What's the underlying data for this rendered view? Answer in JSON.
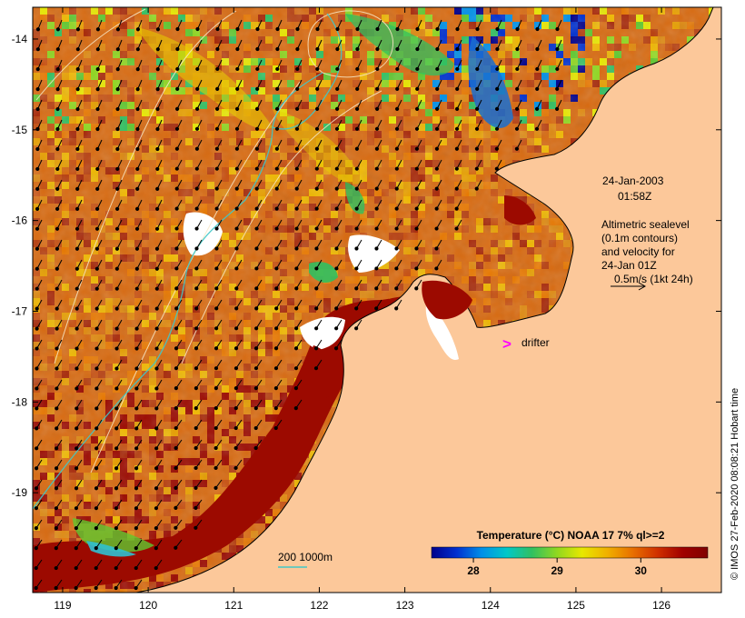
{
  "map": {
    "lon_ticks": [
      "119",
      "120",
      "121",
      "122",
      "123",
      "124",
      "125",
      "126"
    ],
    "lat_ticks": [
      "-14",
      "-15",
      "-16",
      "-17",
      "-18",
      "-19"
    ],
    "lon_range": [
      118.65,
      126.7
    ],
    "lat_range": [
      -20.1,
      -13.65
    ]
  },
  "annotations": {
    "date": "24-Jan-2003",
    "time": "01:58Z",
    "altimetry_lines": [
      "Altimetric sealevel",
      "(0.1m contours)",
      "and velocity for",
      "24-Jan 01Z",
      "0.5m/s (1kt 24h)"
    ],
    "drifter_marker": ">",
    "drifter_label": "drifter",
    "bathymetry_legend": "200  1000m"
  },
  "colorbar": {
    "title": "Temperature (°C) NOAA 17 7% ql>=2",
    "ticks": [
      "28",
      "29",
      "30"
    ],
    "range": [
      27.5,
      30.8
    ],
    "colors": [
      "#00008b",
      "#0030d0",
      "#0090e8",
      "#00c8c8",
      "#30c060",
      "#90d820",
      "#e8e800",
      "#f0b000",
      "#e87000",
      "#d03000",
      "#a00000",
      "#800000"
    ]
  },
  "credit": "© IMOS 27-Feb-2020 08:08:21 Hobart time",
  "colors": {
    "land": "#fcc89a",
    "sea_warm": "#d86a10",
    "sea_hot": "#9c0a00",
    "coastline": "#000000",
    "contour_200m": "#40c8c8",
    "drifter": "#ff00ff"
  }
}
